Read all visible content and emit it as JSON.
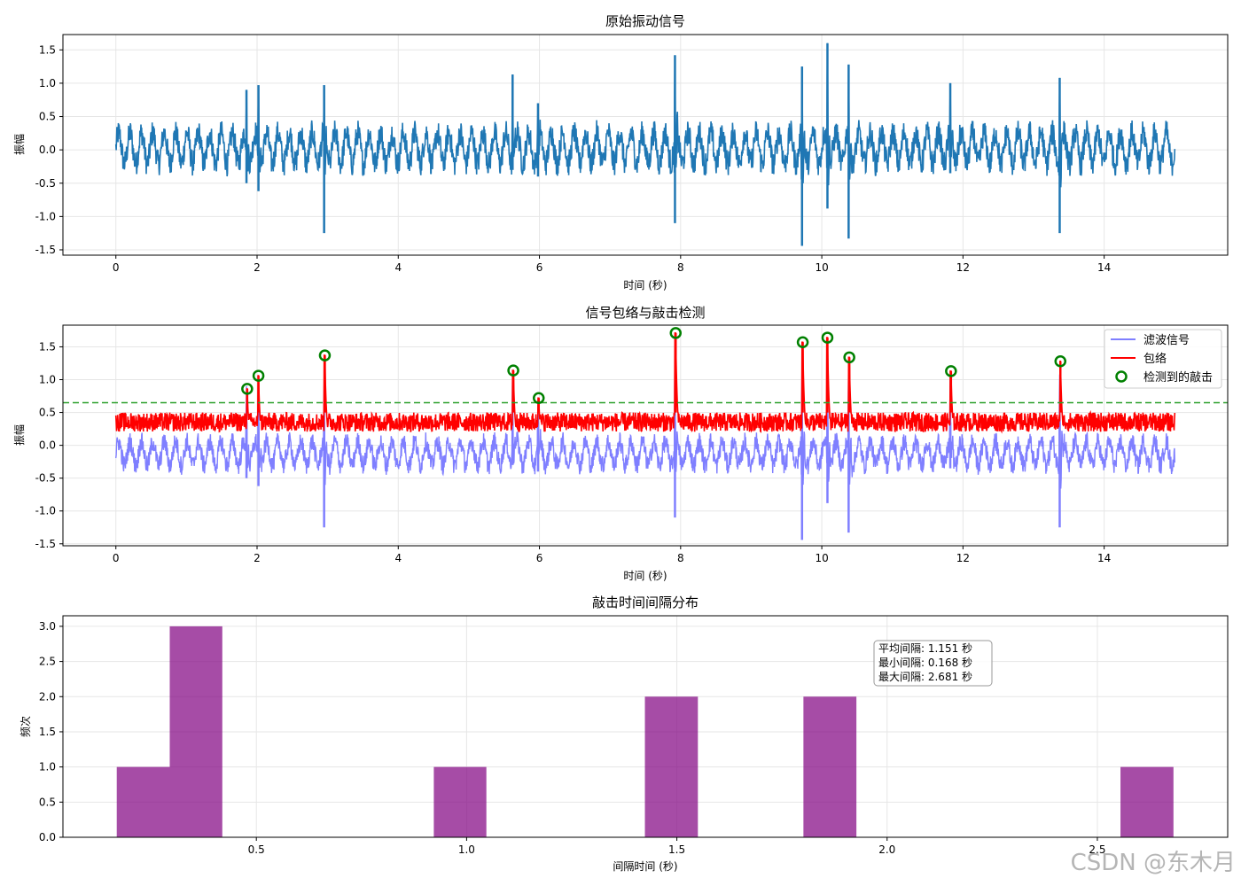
{
  "chart_data": [
    {
      "type": "line",
      "title": "原始振动信号",
      "xlabel": "时间 (秒)",
      "ylabel": "振幅",
      "xlim": [
        -0.75,
        15.75
      ],
      "ylim": [
        -1.58,
        1.73
      ],
      "xticks": [
        0,
        2,
        4,
        6,
        8,
        10,
        12,
        14
      ],
      "yticks": [
        -1.5,
        -1.0,
        -0.5,
        0.0,
        0.5,
        1.0,
        1.5
      ],
      "grid": true,
      "series": [
        {
          "color": "#1f77b4",
          "baseline_band": [
            -0.4,
            0.45
          ],
          "spikes": [
            {
              "x": 1.85,
              "max": 0.9,
              "min": -0.5
            },
            {
              "x": 2.02,
              "max": 0.97,
              "min": -0.62
            },
            {
              "x": 2.95,
              "max": 0.97,
              "min": -1.25
            },
            {
              "x": 5.62,
              "max": 1.13,
              "min": -0.3
            },
            {
              "x": 5.98,
              "max": 0.7,
              "min": -0.4
            },
            {
              "x": 7.92,
              "max": 1.42,
              "min": -1.1
            },
            {
              "x": 9.72,
              "max": 1.25,
              "min": -1.44
            },
            {
              "x": 10.08,
              "max": 1.6,
              "min": -0.88
            },
            {
              "x": 10.38,
              "max": 1.28,
              "min": -1.33
            },
            {
              "x": 11.82,
              "max": 1.0,
              "min": -0.35
            },
            {
              "x": 13.37,
              "max": 1.08,
              "min": -1.25
            }
          ]
        }
      ]
    },
    {
      "type": "line",
      "title": "信号包络与敲击检测",
      "xlabel": "时间 (秒)",
      "ylabel": "振幅",
      "xlim": [
        -0.75,
        15.75
      ],
      "ylim": [
        -1.53,
        1.83
      ],
      "xticks": [
        0,
        2,
        4,
        6,
        8,
        10,
        12,
        14
      ],
      "yticks": [
        -1.5,
        -1.0,
        -0.5,
        0.0,
        0.5,
        1.0,
        1.5
      ],
      "grid": true,
      "threshold": 0.65,
      "legend_position": "top-right",
      "series": [
        {
          "name": "滤波信号",
          "color": "#7f7fff",
          "baseline_band": [
            -0.45,
            0.2
          ]
        },
        {
          "name": "包络",
          "color": "#ff0000",
          "baseline_band": [
            0.05,
            0.5
          ]
        },
        {
          "name": "检测到的敲击",
          "color": "#008000",
          "points": [
            {
              "x": 1.86,
              "y": 0.86
            },
            {
              "x": 2.02,
              "y": 1.06
            },
            {
              "x": 2.96,
              "y": 1.37
            },
            {
              "x": 5.63,
              "y": 1.14
            },
            {
              "x": 5.99,
              "y": 0.72
            },
            {
              "x": 7.93,
              "y": 1.71
            },
            {
              "x": 9.73,
              "y": 1.57
            },
            {
              "x": 10.08,
              "y": 1.64
            },
            {
              "x": 10.39,
              "y": 1.34
            },
            {
              "x": 11.83,
              "y": 1.13
            },
            {
              "x": 13.38,
              "y": 1.28
            }
          ]
        }
      ]
    },
    {
      "type": "bar",
      "title": "敲击时间间隔分布",
      "xlabel": "间隔时间 (秒)",
      "ylabel": "频次",
      "xlim": [
        0.04,
        2.81
      ],
      "ylim": [
        0,
        3.15
      ],
      "xticks": [
        0.5,
        1.0,
        1.5,
        2.0,
        2.5
      ],
      "yticks": [
        0.0,
        0.5,
        1.0,
        1.5,
        2.0,
        2.5,
        3.0
      ],
      "grid": true,
      "color": "#800080",
      "bins": [
        {
          "x0": 0.168,
          "x1": 0.294,
          "count": 1
        },
        {
          "x0": 0.294,
          "x1": 0.419,
          "count": 3
        },
        {
          "x0": 0.922,
          "x1": 1.047,
          "count": 1
        },
        {
          "x0": 1.424,
          "x1": 1.55,
          "count": 2
        },
        {
          "x0": 1.801,
          "x1": 1.927,
          "count": 2
        },
        {
          "x0": 2.555,
          "x1": 2.681,
          "count": 1
        }
      ],
      "stats_text": [
        "平均间隔: 1.151 秒",
        "最小间隔: 0.168 秒",
        "最大间隔: 2.681 秒"
      ]
    }
  ],
  "watermark": "CSDN @东木月"
}
